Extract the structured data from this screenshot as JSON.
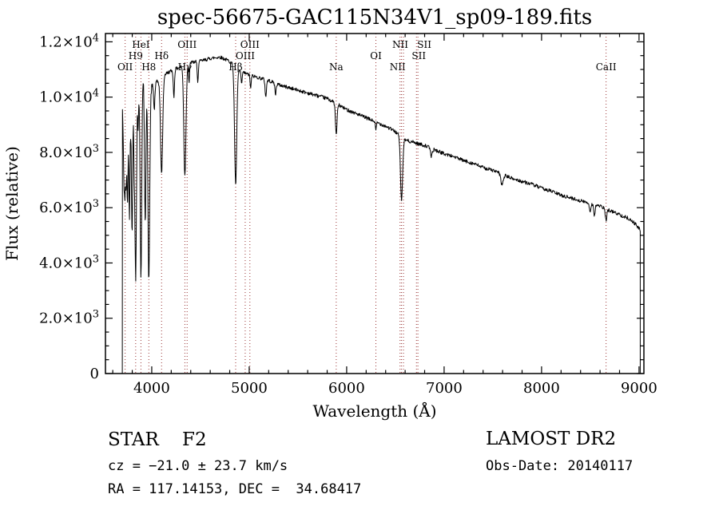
{
  "chart_data": {
    "type": "line",
    "title": "spec-56675-GAC115N34V1_sp09-189.fits",
    "xlabel": "Wavelength (Å)",
    "ylabel": "Flux (relative)",
    "xlim": [
      3525,
      9050
    ],
    "ylim": [
      0,
      12300
    ],
    "x_ticks": [
      4000,
      5000,
      6000,
      7000,
      8000,
      9000
    ],
    "x_minor_step": 200,
    "y_ticks": [
      {
        "v": 0,
        "label": "0"
      },
      {
        "v": 2000,
        "label": "2.0×10^3"
      },
      {
        "v": 4000,
        "label": "4.0×10^3"
      },
      {
        "v": 6000,
        "label": "6.0×10^3"
      },
      {
        "v": 8000,
        "label": "8.0×10^3"
      },
      {
        "v": 10000,
        "label": "1.0×10^4"
      },
      {
        "v": 12000,
        "label": "1.2×10^4"
      }
    ],
    "y_minor_step": 500,
    "grid": false,
    "legend": false,
    "line_color": "#000000",
    "marker_color": "#993333",
    "line_markers": [
      {
        "label": "OII",
        "wavelength": 3727,
        "row": 3
      },
      {
        "label": "H9",
        "wavelength": 3835,
        "row": 2
      },
      {
        "label": "HeI",
        "wavelength": 3889,
        "row": 1
      },
      {
        "label": "H8",
        "wavelength": 3970,
        "row": 3
      },
      {
        "label": "Hδ",
        "wavelength": 4101,
        "row": 2
      },
      {
        "label": "Hγ",
        "wavelength": 4340,
        "row": 3
      },
      {
        "label": "OIII",
        "wavelength": 4363,
        "row": 1
      },
      {
        "label": "Hβ",
        "wavelength": 4861,
        "row": 3
      },
      {
        "label": "OIII",
        "wavelength": 4959,
        "row": 2
      },
      {
        "label": "OIII",
        "wavelength": 5007,
        "row": 1
      },
      {
        "label": "Na",
        "wavelength": 5893,
        "row": 3
      },
      {
        "label": "OI",
        "wavelength": 6300,
        "row": 2
      },
      {
        "label": "NII",
        "wavelength": 6548,
        "row": 3,
        "dx": -3
      },
      {
        "label": "",
        "wavelength": 6563,
        "row": 3
      },
      {
        "label": "NII",
        "wavelength": 6583,
        "row": 1,
        "dx": -4
      },
      {
        "label": "SII",
        "wavelength": 6716,
        "row": 2,
        "dx": 3
      },
      {
        "label": "SII",
        "wavelength": 6731,
        "row": 1,
        "dx": 8
      },
      {
        "label": "CaII",
        "wavelength": 8662,
        "row": 3
      }
    ],
    "spectrum": {
      "domain": [
        3700,
        9012
      ],
      "step": 4,
      "continuum": [
        [
          3700,
          9600
        ],
        [
          3720,
          9900
        ],
        [
          3760,
          10100
        ],
        [
          3800,
          10250
        ],
        [
          3850,
          10450
        ],
        [
          3900,
          10600
        ],
        [
          3950,
          10500
        ],
        [
          4000,
          10350
        ],
        [
          4060,
          10550
        ],
        [
          4120,
          10800
        ],
        [
          4200,
          10950
        ],
        [
          4300,
          11100
        ],
        [
          4400,
          11250
        ],
        [
          4500,
          11300
        ],
        [
          4600,
          11400
        ],
        [
          4700,
          11450
        ],
        [
          4800,
          11300
        ],
        [
          4900,
          10950
        ],
        [
          5000,
          10800
        ],
        [
          5100,
          10700
        ],
        [
          5200,
          10600
        ],
        [
          5300,
          10450
        ],
        [
          5400,
          10350
        ],
        [
          5500,
          10250
        ],
        [
          5600,
          10150
        ],
        [
          5700,
          10050
        ],
        [
          5800,
          9950
        ],
        [
          5900,
          9750
        ],
        [
          6000,
          9550
        ],
        [
          6100,
          9400
        ],
        [
          6200,
          9250
        ],
        [
          6300,
          9100
        ],
        [
          6400,
          8950
        ],
        [
          6500,
          8750
        ],
        [
          6600,
          8450
        ],
        [
          6700,
          8350
        ],
        [
          6800,
          8250
        ],
        [
          6900,
          8100
        ],
        [
          7000,
          7950
        ],
        [
          7100,
          7850
        ],
        [
          7200,
          7700
        ],
        [
          7300,
          7600
        ],
        [
          7400,
          7450
        ],
        [
          7500,
          7350
        ],
        [
          7600,
          7200
        ],
        [
          7700,
          7050
        ],
        [
          7800,
          6950
        ],
        [
          7900,
          6850
        ],
        [
          8000,
          6700
        ],
        [
          8100,
          6600
        ],
        [
          8200,
          6450
        ],
        [
          8300,
          6350
        ],
        [
          8400,
          6250
        ],
        [
          8500,
          6150
        ],
        [
          8600,
          6050
        ],
        [
          8700,
          5900
        ],
        [
          8800,
          5750
        ],
        [
          8900,
          5600
        ],
        [
          8950,
          5450
        ],
        [
          9000,
          5250
        ],
        [
          9012,
          5150
        ]
      ],
      "absorption_lines": [
        {
          "center": 3712,
          "depth": 2200,
          "width": 5
        },
        {
          "center": 3722,
          "depth": 2800,
          "width": 5
        },
        {
          "center": 3734,
          "depth": 3200,
          "width": 6
        },
        {
          "center": 3750,
          "depth": 3800,
          "width": 6
        },
        {
          "center": 3771,
          "depth": 4300,
          "width": 7
        },
        {
          "center": 3798,
          "depth": 5000,
          "width": 7
        },
        {
          "center": 3820,
          "depth": 2000,
          "width": 5
        },
        {
          "center": 3835,
          "depth": 7000,
          "width": 8
        },
        {
          "center": 3860,
          "depth": 1500,
          "width": 5
        },
        {
          "center": 3889,
          "depth": 7000,
          "width": 8
        },
        {
          "center": 3933,
          "depth": 5200,
          "width": 7
        },
        {
          "center": 3970,
          "depth": 7200,
          "width": 9
        },
        {
          "center": 4026,
          "depth": 900,
          "width": 6
        },
        {
          "center": 4101,
          "depth": 3500,
          "width": 11
        },
        {
          "center": 4227,
          "depth": 1000,
          "width": 6
        },
        {
          "center": 4340,
          "depth": 4000,
          "width": 11
        },
        {
          "center": 4383,
          "depth": 700,
          "width": 5
        },
        {
          "center": 4472,
          "depth": 700,
          "width": 6
        },
        {
          "center": 4861,
          "depth": 4300,
          "width": 11
        },
        {
          "center": 4922,
          "depth": 500,
          "width": 5
        },
        {
          "center": 5015,
          "depth": 500,
          "width": 5
        },
        {
          "center": 5170,
          "depth": 600,
          "width": 7
        },
        {
          "center": 5270,
          "depth": 400,
          "width": 6
        },
        {
          "center": 5893,
          "depth": 1150,
          "width": 8
        },
        {
          "center": 6300,
          "depth": 300,
          "width": 5
        },
        {
          "center": 6563,
          "depth": 2300,
          "width": 11
        },
        {
          "center": 6870,
          "depth": 280,
          "width": 9
        },
        {
          "center": 7594,
          "depth": 380,
          "width": 12
        },
        {
          "center": 8498,
          "depth": 280,
          "width": 7
        },
        {
          "center": 8542,
          "depth": 380,
          "width": 7
        },
        {
          "center": 8662,
          "depth": 430,
          "width": 8
        }
      ],
      "noise": {
        "base": 65,
        "blue_extra": 300,
        "blue_cutoff": 4100,
        "seed": 42
      }
    }
  },
  "annotations": {
    "class_line": "STAR    F2",
    "survey": "LAMOST DR2",
    "cz_line": "cz = −21.0 ± 23.7 km/s",
    "obs_date": "Obs-Date: 20140117",
    "radec_line": "RA = 117.14153, DEC =  34.68417"
  }
}
